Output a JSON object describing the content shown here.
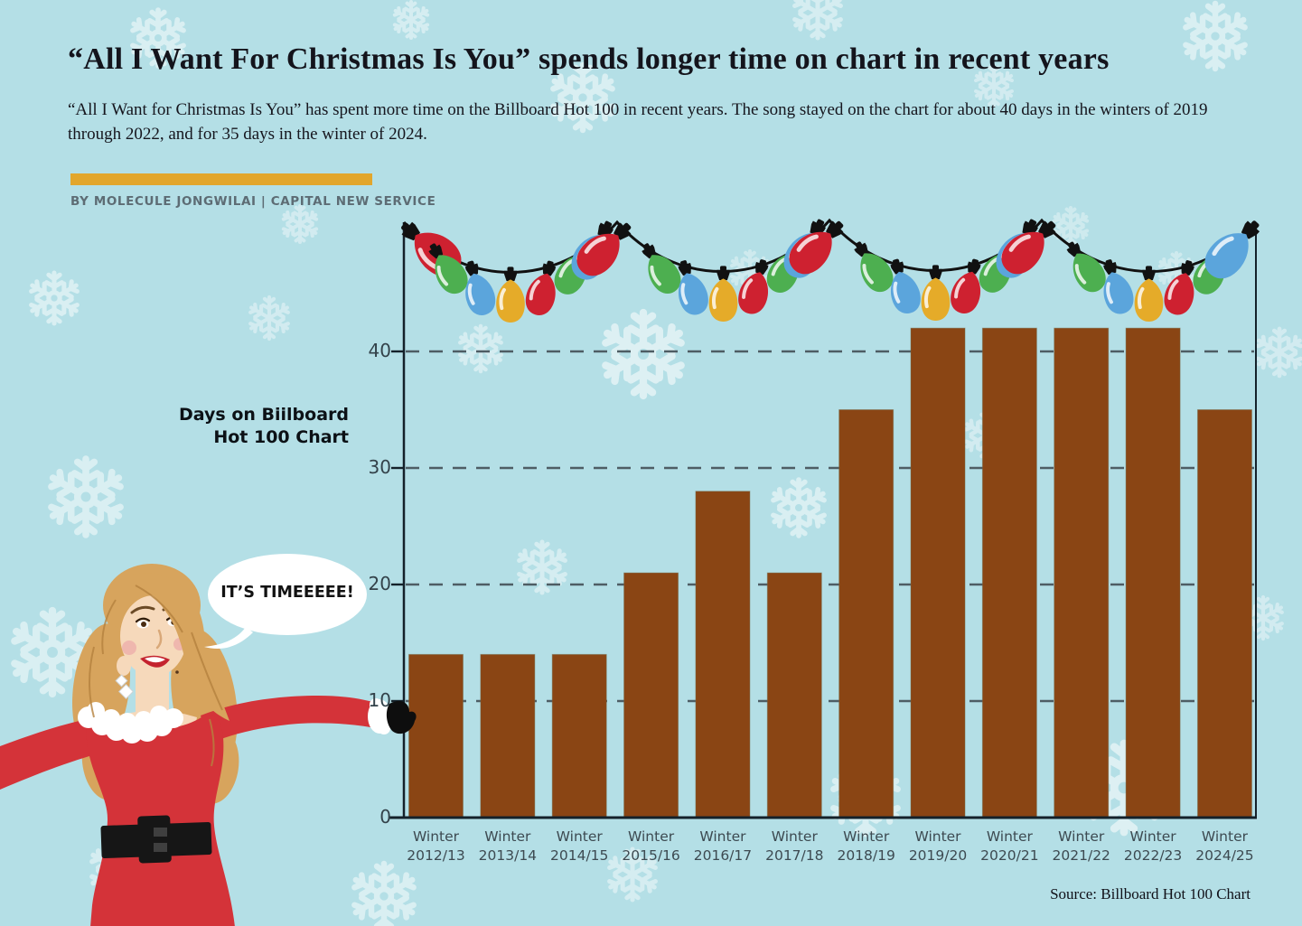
{
  "header": {
    "title": "“All I Want For Christmas Is You” spends longer time on chart in recent years",
    "subtitle": "“All I Want for Christmas Is You” has spent more time on the Billboard Hot 100 in recent years. The song stayed on the chart for about 40 days in the winters of 2019 through 2022, and for 35 days in the winter of 2024.",
    "byline": "BY MOLECULE JONGWILAI  |  CAPITAL NEW SERVICE",
    "accent_bar_color": "#e2a62c"
  },
  "chart_data": {
    "type": "bar",
    "title": "Days on Biilboard Hot 100 Chart",
    "ylabel": [
      "Days on Biilboard",
      "Hot 100 Chart"
    ],
    "categories": [
      "Winter 2012/13",
      "Winter 2013/14",
      "Winter 2014/15",
      "Winter 2015/16",
      "Winter 2016/17",
      "Winter 2017/18",
      "Winter 2018/19",
      "Winter 2019/20",
      "Winter 2020/21",
      "Winter 2021/22",
      "Winter 2022/23",
      "Winter 2024/25"
    ],
    "values": [
      14,
      14,
      14,
      21,
      28,
      21,
      35,
      42,
      42,
      42,
      42,
      35
    ],
    "yticks": [
      0,
      10,
      20,
      30,
      40
    ],
    "ylim": [
      0,
      44
    ],
    "grid": "horizontal-dashed",
    "legend": "none",
    "bar_color": "#8a4514"
  },
  "speech_bubble": {
    "text": "IT’S TIMEEEEE!"
  },
  "source": "Source: Billboard Hot 100 Chart",
  "decor": {
    "background_color": "#b4dfe6",
    "snowflake_color": "#ffffff",
    "grid_color": "#4e5d64",
    "axis_color": "#14212a",
    "garland": {
      "string_color": "#111111",
      "cap_color": "#111111",
      "bulb_colors": {
        "red": "#ce2130",
        "green": "#4daf50",
        "blue": "#5ba5dc",
        "gold": "#e5ab29"
      }
    },
    "figure": {
      "dress_color": "#d43339",
      "hair_color": "#d7a45d",
      "hair_line_color": "#b5823f",
      "skin_color": "#f6d9bb",
      "lips_color": "#c4232e",
      "belt_color": "#161616",
      "fur_color": "#ffffff"
    }
  }
}
